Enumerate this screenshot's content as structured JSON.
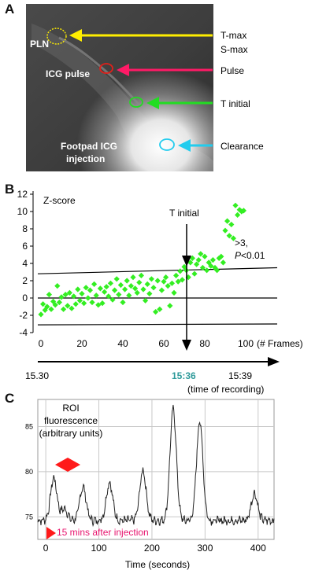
{
  "panelA": {
    "letter": "A",
    "labels": {
      "pln": "PLN",
      "icg_pulse": "ICG pulse",
      "footpad_line1": "Footpad ICG",
      "footpad_line2": "injection"
    },
    "arrows": [
      {
        "name": "tmax",
        "lines": [
          "T-max",
          "S-max"
        ],
        "color": "#ffee00"
      },
      {
        "name": "pulse",
        "lines": [
          "Pulse"
        ],
        "color": "#ff1a66"
      },
      {
        "name": "tinitial",
        "lines": [
          "T initial"
        ],
        "color": "#22dd22"
      },
      {
        "name": "clearance",
        "lines": [
          "Clearance"
        ],
        "color": "#22ccee"
      }
    ]
  },
  "panelB": {
    "letter": "B",
    "zscore_label": "Z-score",
    "tinitial_label": "T initial",
    "threshold_line1": ">3,",
    "threshold_line2_italic": "P",
    "threshold_line2_rest": "<0.01",
    "frames_label": "(# Frames)",
    "time_start": "15.30",
    "time_mid": "15:36",
    "time_end": "15:39",
    "time_caption": "(time of recording)",
    "accent": "#2e9a9a"
  },
  "panelC": {
    "letter": "C",
    "roi_line1": "ROI",
    "roi_line2": "fluorescence",
    "roi_line3": "(arbitrary units)",
    "annotation": "15 mins after injection",
    "annotation_color": "#e8146e",
    "marker_color": "#ff1a1a"
  },
  "chart_data": [
    {
      "type": "scatter",
      "title": "",
      "xlabel": "(# Frames)",
      "ylabel": "Z-score",
      "xlim": [
        0,
        100
      ],
      "ylim": [
        -4,
        12
      ],
      "xticks": [
        0,
        20,
        40,
        60,
        80,
        100
      ],
      "yticks": [
        -4,
        -2,
        0,
        2,
        4,
        6,
        8,
        10,
        12
      ],
      "color": "#33ee22",
      "points": [
        [
          0,
          -1.9
        ],
        [
          1,
          -0.7
        ],
        [
          2,
          -1.4
        ],
        [
          3,
          -1.0
        ],
        [
          4,
          0.4
        ],
        [
          5,
          -1.3
        ],
        [
          6,
          -0.4
        ],
        [
          7,
          -0.8
        ],
        [
          8,
          1.4
        ],
        [
          9,
          -0.5
        ],
        [
          10,
          0.1
        ],
        [
          11,
          -1.3
        ],
        [
          12,
          0.4
        ],
        [
          13,
          -0.9
        ],
        [
          14,
          0.6
        ],
        [
          15,
          -1.2
        ],
        [
          16,
          0.2
        ],
        [
          17,
          -0.7
        ],
        [
          18,
          1.0
        ],
        [
          19,
          -0.3
        ],
        [
          20,
          0.5
        ],
        [
          21,
          -0.6
        ],
        [
          22,
          1.2
        ],
        [
          23,
          0.0
        ],
        [
          24,
          0.9
        ],
        [
          25,
          -0.5
        ],
        [
          26,
          1.6
        ],
        [
          27,
          0.3
        ],
        [
          28,
          -0.8
        ],
        [
          29,
          1.1
        ],
        [
          30,
          -0.6
        ],
        [
          31,
          0.7
        ],
        [
          32,
          1.3
        ],
        [
          33,
          0.2
        ],
        [
          34,
          1.7
        ],
        [
          35,
          -0.2
        ],
        [
          36,
          0.9
        ],
        [
          37,
          2.2
        ],
        [
          38,
          0.4
        ],
        [
          39,
          1.5
        ],
        [
          40,
          -0.5
        ],
        [
          41,
          1.0
        ],
        [
          42,
          2.0
        ],
        [
          43,
          0.3
        ],
        [
          44,
          1.4
        ],
        [
          45,
          2.4
        ],
        [
          46,
          1.1
        ],
        [
          47,
          0.6
        ],
        [
          48,
          1.8
        ],
        [
          49,
          2.6
        ],
        [
          50,
          1.0
        ],
        [
          51,
          -0.3
        ],
        [
          52,
          1.6
        ],
        [
          53,
          0.5
        ],
        [
          54,
          2.2
        ],
        [
          55,
          1.2
        ],
        [
          56,
          -1.6
        ],
        [
          57,
          2.0
        ],
        [
          58,
          -1.3
        ],
        [
          59,
          0.9
        ],
        [
          60,
          1.9
        ],
        [
          61,
          2.4
        ],
        [
          62,
          1.4
        ],
        [
          63,
          -0.9
        ],
        [
          64,
          1.7
        ],
        [
          65,
          0.6
        ],
        [
          66,
          2.6
        ],
        [
          67,
          1.9
        ],
        [
          68,
          3.1
        ],
        [
          69,
          2.1
        ],
        [
          70,
          3.6
        ],
        [
          71,
          3.2
        ],
        [
          72,
          2.4
        ],
        [
          73,
          4.1
        ],
        [
          74,
          4.6
        ],
        [
          75,
          2.8
        ],
        [
          76,
          3.9
        ],
        [
          77,
          4.4
        ],
        [
          78,
          5.1
        ],
        [
          79,
          3.5
        ],
        [
          80,
          4.8
        ],
        [
          81,
          3.2
        ],
        [
          82,
          4.1
        ],
        [
          83,
          3.7
        ],
        [
          84,
          4.4
        ],
        [
          85,
          3.5
        ],
        [
          86,
          3.2
        ],
        [
          87,
          4.6
        ],
        [
          88,
          4.8
        ],
        [
          89,
          4.1
        ],
        [
          90,
          7.8
        ],
        [
          91,
          8.9
        ],
        [
          92,
          7.2
        ],
        [
          93,
          8.5
        ],
        [
          94,
          6.9
        ],
        [
          95,
          10.7
        ],
        [
          96,
          9.6
        ],
        [
          97,
          10.2
        ],
        [
          98,
          10.0
        ],
        [
          99,
          10.1
        ]
      ],
      "reference_lines": [
        {
          "from": [
            0,
            2.8
          ],
          "to": [
            100,
            3.5
          ]
        },
        {
          "from": [
            0,
            0
          ],
          "to": [
            100,
            0
          ]
        },
        {
          "from": [
            0,
            -3.1
          ],
          "to": [
            100,
            -3.0
          ]
        }
      ],
      "t_initial_frame": 70
    },
    {
      "type": "line",
      "title": "",
      "xlabel": "Time (seconds)",
      "ylabel": "",
      "xlim": [
        -15,
        430
      ],
      "ylim": [
        72.5,
        88
      ],
      "xticks": [
        0,
        100,
        200,
        300,
        400
      ],
      "yticks": [
        75,
        80,
        85
      ],
      "grid": true,
      "color": "#222222",
      "baseline": 74.6,
      "peaks": [
        {
          "t": 15,
          "value": 79.3
        },
        {
          "t": 35,
          "value": 75.9
        },
        {
          "t": 70,
          "value": 78.3
        },
        {
          "t": 120,
          "value": 78.8
        },
        {
          "t": 183,
          "value": 80.1
        },
        {
          "t": 240,
          "value": 86.9
        },
        {
          "t": 290,
          "value": 85.6
        },
        {
          "t": 393,
          "value": 77.6
        }
      ]
    }
  ]
}
